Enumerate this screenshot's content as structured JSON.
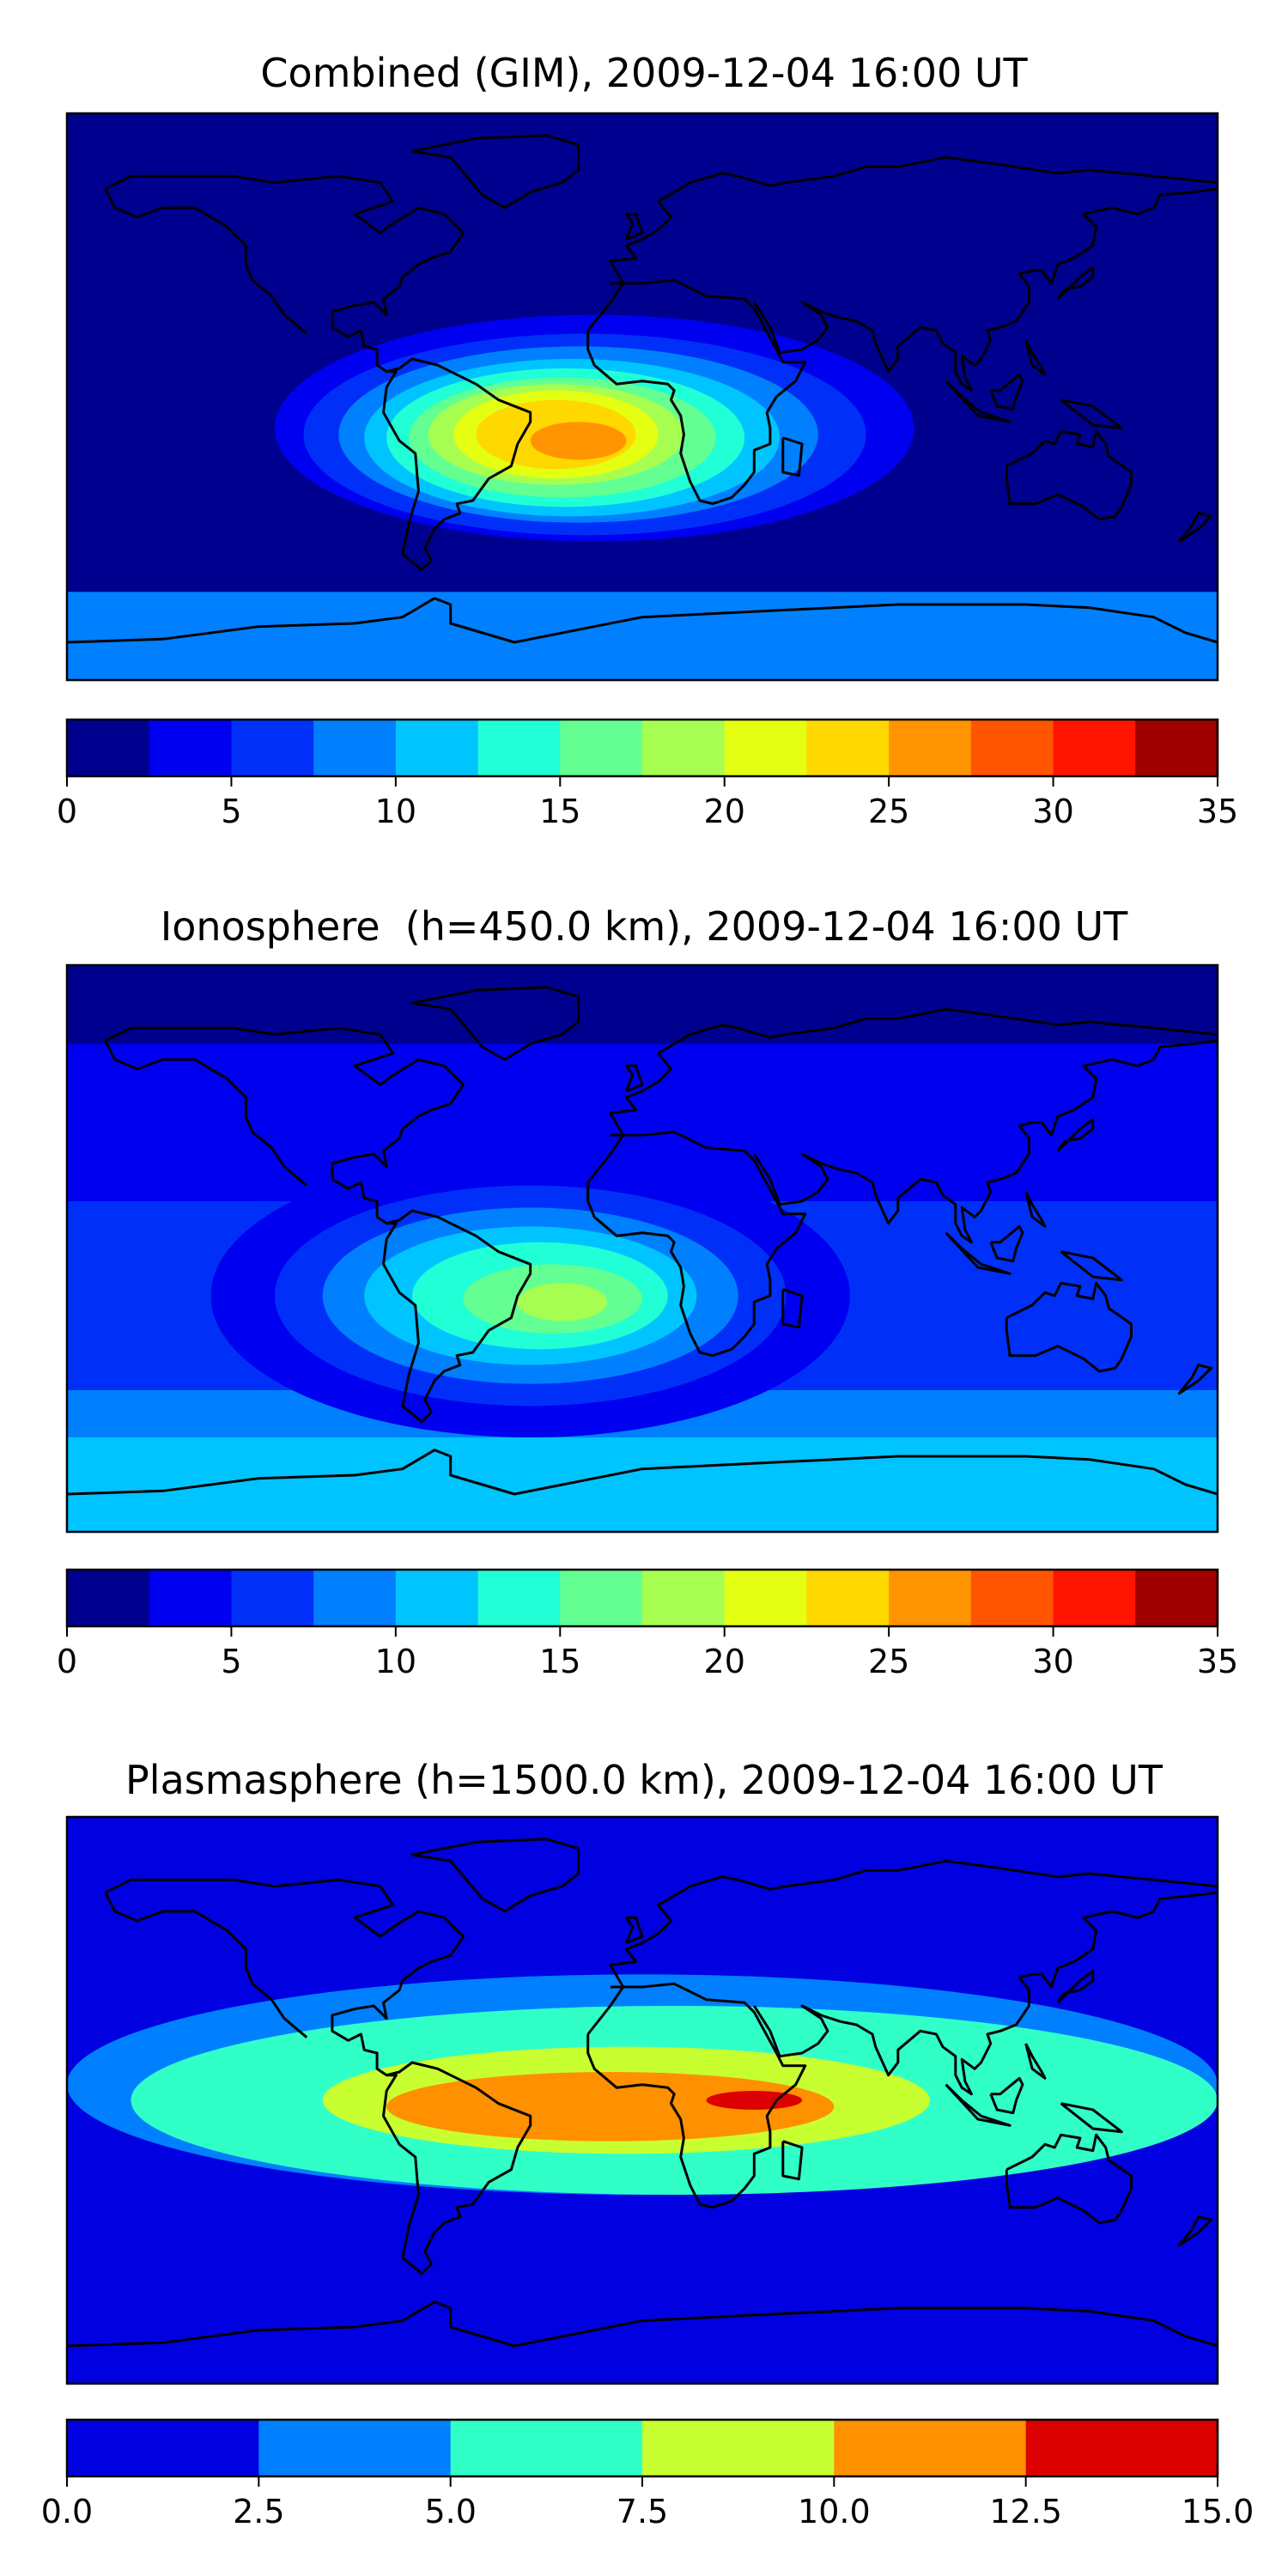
{
  "chart_data": [
    {
      "type": "heatmap",
      "title": "Combined (GIM), 2009-12-04 16:00 UT",
      "colorbar": {
        "range": [
          0,
          35
        ],
        "step": 2.5,
        "ticks": [
          "0",
          "5",
          "10",
          "15",
          "20",
          "25",
          "30",
          "35"
        ],
        "tick_values": [
          0,
          5,
          10,
          15,
          20,
          25,
          30,
          35
        ],
        "colors": [
          "#00008f",
          "#0000f0",
          "#0030f8",
          "#0080ff",
          "#00c4ff",
          "#20ffd6",
          "#64ff92",
          "#a6ff50",
          "#e4ff12",
          "#ffd800",
          "#ff9400",
          "#ff5400",
          "#ff1400",
          "#a00000"
        ]
      },
      "blobs": [
        {
          "lon": -15,
          "lat": -10,
          "rx": 115,
          "ry": 40,
          "level": 1.5
        },
        {
          "lon": -15,
          "lat": -10,
          "rx": 100,
          "ry": 36,
          "level": 4.0
        },
        {
          "lon": -18,
          "lat": -12,
          "rx": 88,
          "ry": 32,
          "level": 6.5
        },
        {
          "lon": -20,
          "lat": -12,
          "rx": 75,
          "ry": 28,
          "level": 9.0
        },
        {
          "lon": -22,
          "lat": -13,
          "rx": 65,
          "ry": 25,
          "level": 11.5
        },
        {
          "lon": -24,
          "lat": -13,
          "rx": 56,
          "ry": 22,
          "level": 14.0
        },
        {
          "lon": -25,
          "lat": -13,
          "rx": 48,
          "ry": 19,
          "level": 16.5
        },
        {
          "lon": -27,
          "lat": -12,
          "rx": 40,
          "ry": 16,
          "level": 19.0
        },
        {
          "lon": -27,
          "lat": -12,
          "rx": 32,
          "ry": 14,
          "level": 21.5
        },
        {
          "lon": -27,
          "lat": -12,
          "rx": 25,
          "ry": 11,
          "level": 24.0
        },
        {
          "lon": -20,
          "lat": -14,
          "rx": 15,
          "ry": 6,
          "level": 26.5
        }
      ]
    },
    {
      "type": "heatmap",
      "title": "Ionosphere  (h=450.0 km), 2009-12-04 16:00 UT",
      "colorbar": {
        "range": [
          0,
          35
        ],
        "step": 2.5,
        "ticks": [
          "0",
          "5",
          "10",
          "15",
          "20",
          "25",
          "30",
          "35"
        ],
        "tick_values": [
          0,
          5,
          10,
          15,
          20,
          25,
          30,
          35
        ],
        "colors": [
          "#00008f",
          "#0000f0",
          "#0030f8",
          "#0080ff",
          "#00c4ff",
          "#20ffd6",
          "#64ff92",
          "#a6ff50",
          "#e4ff12",
          "#ffd800",
          "#ff9400",
          "#ff5400",
          "#ff1400",
          "#a00000"
        ]
      },
      "blobs": [
        {
          "lon": -35,
          "lat": -15,
          "rx": 100,
          "ry": 45,
          "level": 4.0
        },
        {
          "lon": -35,
          "lat": -15,
          "rx": 80,
          "ry": 35,
          "level": 6.5
        },
        {
          "lon": -35,
          "lat": -15,
          "rx": 65,
          "ry": 28,
          "level": 9.0
        },
        {
          "lon": -35,
          "lat": -15,
          "rx": 52,
          "ry": 22,
          "level": 11.5
        },
        {
          "lon": -32,
          "lat": -15,
          "rx": 40,
          "ry": 17,
          "level": 14.0
        },
        {
          "lon": -28,
          "lat": -16,
          "rx": 28,
          "ry": 11,
          "level": 16.5
        },
        {
          "lon": -25,
          "lat": -17,
          "rx": 14,
          "ry": 6,
          "level": 19.0
        }
      ]
    },
    {
      "type": "heatmap",
      "title": "Plasmasphere (h=1500.0 km), 2009-12-04 16:00 UT",
      "colorbar": {
        "range": [
          0,
          15
        ],
        "step": 2.5,
        "ticks": [
          "0.0",
          "2.5",
          "5.0",
          "7.5",
          "10.0",
          "12.5",
          "15.0"
        ],
        "tick_values": [
          0,
          2.5,
          5,
          7.5,
          10,
          12.5,
          15
        ],
        "colors": [
          "#0000e0",
          "#0080ff",
          "#30ffc8",
          "#c8ff30",
          "#ff9000",
          "#dc0000"
        ]
      },
      "blobs": [
        {
          "lon": 0,
          "lat": 5,
          "rx": 180,
          "ry": 35,
          "level": 3.5
        },
        {
          "lon": 10,
          "lat": 0,
          "rx": 170,
          "ry": 30,
          "level": 6.0
        },
        {
          "lon": -5,
          "lat": 0,
          "rx": 95,
          "ry": 17,
          "level": 8.5
        },
        {
          "lon": -10,
          "lat": -2,
          "rx": 70,
          "ry": 11,
          "level": 11.0
        },
        {
          "lon": 35,
          "lat": 0,
          "rx": 15,
          "ry": 3,
          "level": 13.5
        }
      ]
    }
  ]
}
